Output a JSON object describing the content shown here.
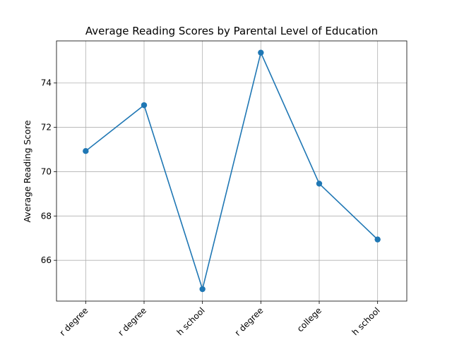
{
  "chart_data": {
    "type": "line",
    "title": "Average Reading Scores by Parental Level of Education",
    "xlabel": "",
    "ylabel": "Average Reading Score",
    "categories": [
      "r degree",
      "r degree",
      "h school",
      "r degree",
      "college",
      "h school"
    ],
    "series": [
      {
        "values": [
          70.93,
          73.0,
          64.7,
          75.37,
          69.46,
          66.94
        ]
      }
    ],
    "ylim": [
      64.16,
      75.9
    ],
    "yticks": [
      66,
      68,
      70,
      72,
      74
    ],
    "ytick_labels": [
      "66",
      "68",
      "70",
      "72",
      "74"
    ],
    "grid": true,
    "line_color": "#1f77b4",
    "marker": "circle"
  }
}
